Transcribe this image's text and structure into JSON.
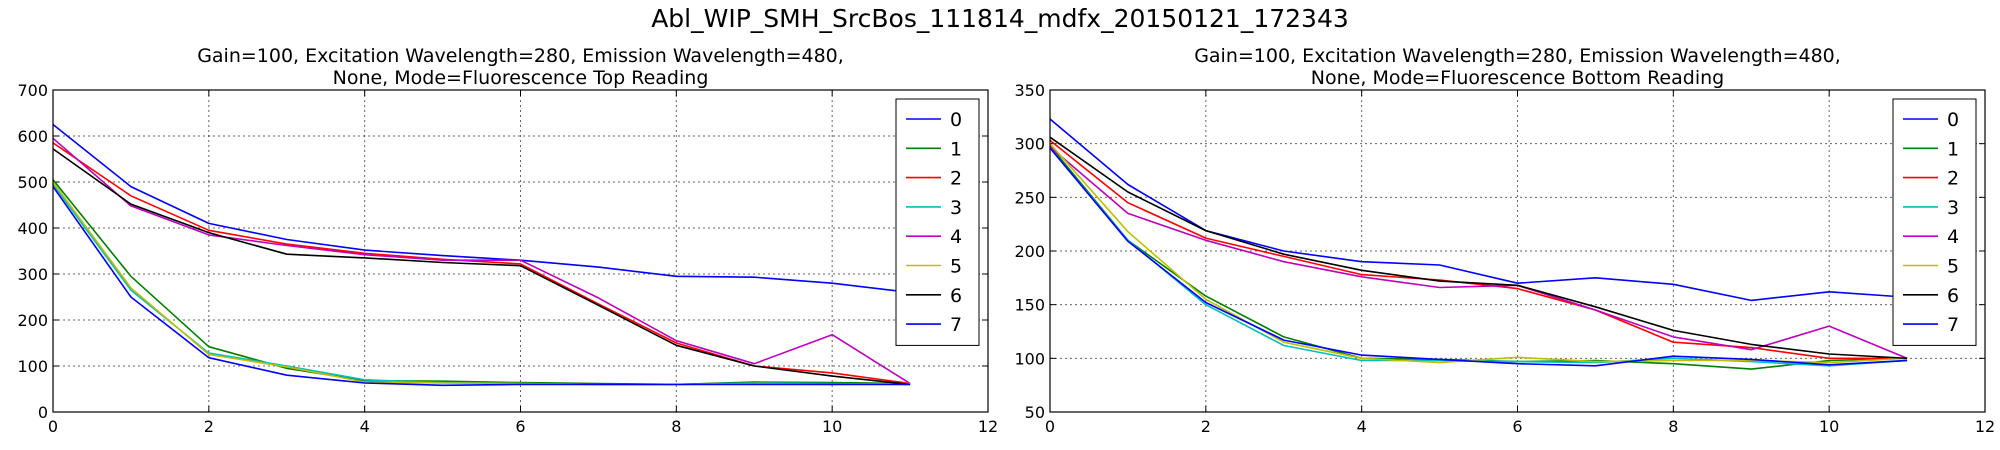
{
  "figure": {
    "title": "Abl_WIP_SMH_SrcBos_111814_mdfx_20150121_172343"
  },
  "chart_data": [
    {
      "type": "line",
      "title_line1": "Gain=100, Excitation Wavelength=280, Emission Wavelength=480,",
      "title_line2": "None, Mode=Fluorescence Top Reading",
      "xlabel": "",
      "ylabel": "",
      "xlim": [
        0,
        12
      ],
      "ylim": [
        0,
        700
      ],
      "xticks": [
        0,
        2,
        4,
        6,
        8,
        10,
        12
      ],
      "yticks": [
        0,
        100,
        200,
        300,
        400,
        500,
        600,
        700
      ],
      "grid": true,
      "legend_position": "top-right",
      "x": [
        0,
        1,
        2,
        3,
        4,
        5,
        6,
        7,
        8,
        9,
        10,
        11
      ],
      "series": [
        {
          "name": "0",
          "color": "#0000ff",
          "values": [
            625,
            490,
            410,
            375,
            352,
            340,
            330,
            315,
            295,
            293,
            280,
            260
          ]
        },
        {
          "name": "1",
          "color": "#008000",
          "values": [
            505,
            295,
            142,
            95,
            68,
            67,
            64,
            62,
            60,
            65,
            64,
            62
          ]
        },
        {
          "name": "2",
          "color": "#ff0000",
          "values": [
            585,
            470,
            395,
            365,
            345,
            332,
            322,
            235,
            150,
            100,
            85,
            62
          ]
        },
        {
          "name": "3",
          "color": "#00bfbf",
          "values": [
            495,
            265,
            128,
            100,
            70,
            64,
            62,
            60,
            60,
            63,
            62,
            60
          ]
        },
        {
          "name": "4",
          "color": "#bf00bf",
          "values": [
            595,
            448,
            385,
            362,
            342,
            330,
            330,
            248,
            155,
            105,
            168,
            62
          ]
        },
        {
          "name": "5",
          "color": "#bfbf00",
          "values": [
            500,
            270,
            125,
            98,
            65,
            63,
            62,
            60,
            60,
            62,
            60,
            62
          ]
        },
        {
          "name": "6",
          "color": "#000000",
          "values": [
            572,
            452,
            390,
            343,
            335,
            325,
            318,
            232,
            145,
            100,
            78,
            60
          ]
        },
        {
          "name": "7",
          "color": "#0000ff",
          "values": [
            490,
            250,
            118,
            80,
            63,
            58,
            60,
            60,
            60,
            60,
            60,
            60
          ]
        }
      ]
    },
    {
      "type": "line",
      "title_line1": "Gain=100, Excitation Wavelength=280, Emission Wavelength=480,",
      "title_line2": "None, Mode=Fluorescence Bottom Reading",
      "xlabel": "",
      "ylabel": "",
      "xlim": [
        0,
        12
      ],
      "ylim": [
        50,
        350
      ],
      "xticks": [
        0,
        2,
        4,
        6,
        8,
        10,
        12
      ],
      "yticks": [
        50,
        100,
        150,
        200,
        250,
        300,
        350
      ],
      "grid": true,
      "legend_position": "top-right",
      "x": [
        0,
        1,
        2,
        3,
        4,
        5,
        6,
        7,
        8,
        9,
        10,
        11
      ],
      "series": [
        {
          "name": "0",
          "color": "#0000ff",
          "values": [
            323,
            262,
            219,
            200,
            190,
            187,
            170,
            175,
            169,
            154,
            162,
            157
          ]
        },
        {
          "name": "1",
          "color": "#008000",
          "values": [
            298,
            210,
            158,
            120,
            100,
            99,
            97,
            98,
            95,
            90,
            98,
            100
          ]
        },
        {
          "name": "2",
          "color": "#ff0000",
          "values": [
            303,
            245,
            212,
            195,
            178,
            173,
            165,
            145,
            115,
            110,
            100,
            100
          ]
        },
        {
          "name": "3",
          "color": "#00bfbf",
          "values": [
            296,
            210,
            150,
            112,
            98,
            98,
            97,
            96,
            100,
            97,
            93,
            98
          ]
        },
        {
          "name": "4",
          "color": "#bf00bf",
          "values": [
            297,
            235,
            210,
            190,
            176,
            166,
            168,
            145,
            120,
            108,
            130,
            100
          ]
        },
        {
          "name": "5",
          "color": "#bfbf00",
          "values": [
            300,
            218,
            155,
            115,
            100,
            96,
            101,
            97,
            98,
            98,
            96,
            100
          ]
        },
        {
          "name": "6",
          "color": "#000000",
          "values": [
            306,
            255,
            219,
            197,
            182,
            172,
            168,
            148,
            126,
            113,
            104,
            100
          ]
        },
        {
          "name": "7",
          "color": "#0000ff",
          "values": [
            296,
            209,
            152,
            117,
            103,
            99,
            95,
            93,
            102,
            99,
            94,
            98
          ]
        }
      ]
    }
  ]
}
